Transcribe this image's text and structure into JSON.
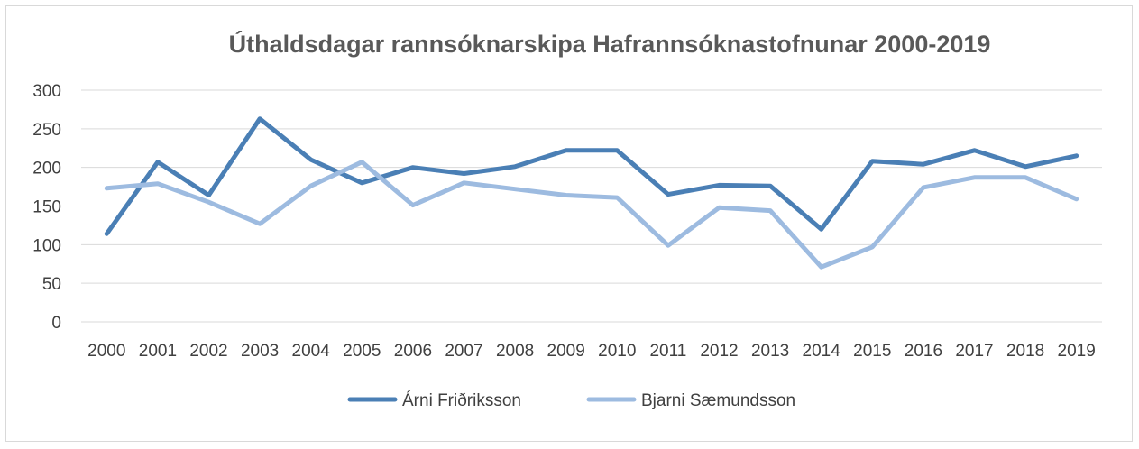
{
  "chart_data": {
    "type": "line",
    "title": "Úthaldsdagar rannsóknarskipa Hafrannsóknastofnunar 2000-2019",
    "xlabel": "",
    "ylabel": "",
    "categories": [
      "2000",
      "2001",
      "2002",
      "2003",
      "2004",
      "2005",
      "2006",
      "2007",
      "2008",
      "2009",
      "2010",
      "2011",
      "2012",
      "2013",
      "2014",
      "2015",
      "2016",
      "2017",
      "2018",
      "2019"
    ],
    "ylim": [
      0,
      300
    ],
    "yticks": [
      "0",
      "50",
      "100",
      "150",
      "200",
      "250",
      "300"
    ],
    "grid": true,
    "legend_position": "bottom",
    "series": [
      {
        "name": "Árni Friðriksson",
        "color": "#4a7fb5",
        "values": [
          114,
          207,
          164,
          263,
          210,
          180,
          200,
          192,
          201,
          222,
          222,
          165,
          177,
          176,
          120,
          208,
          204,
          222,
          201,
          215
        ]
      },
      {
        "name": "Bjarni Sæmundsson",
        "color": "#9dbbe0",
        "values": [
          173,
          179,
          155,
          127,
          176,
          207,
          151,
          180,
          172,
          164,
          161,
          99,
          148,
          144,
          71,
          97,
          174,
          187,
          187,
          159
        ]
      }
    ]
  }
}
